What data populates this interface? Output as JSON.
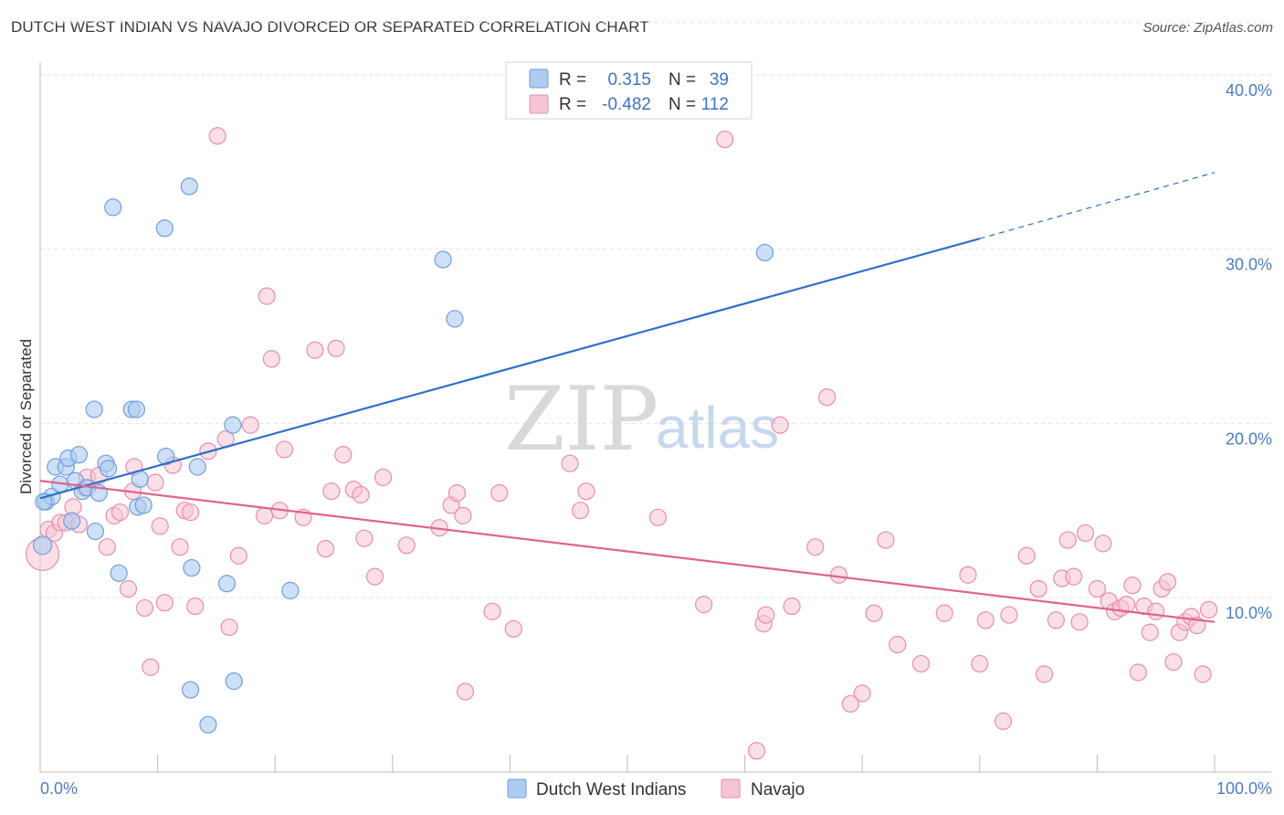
{
  "title": "DUTCH WEST INDIAN VS NAVAJO DIVORCED OR SEPARATED CORRELATION CHART",
  "source": "Source: ZipAtlas.com",
  "colors": {
    "blue_fill": "#aecbf2",
    "blue_stroke": "#6f9edb",
    "blue_line": "#2f6fc9",
    "pink_fill": "#f7c4d3",
    "pink_stroke": "#e88eab",
    "pink_line": "#e0648f",
    "grid": "#e2e2e2",
    "axis_text": "#4a7cc8"
  },
  "legend": {
    "rows": [
      {
        "r_label": "R =",
        "r_value": "0.315",
        "n_label": "N =",
        "n_value": "39"
      },
      {
        "r_label": "R =",
        "r_value": "-0.482",
        "n_label": "N =",
        "n_value": "112"
      }
    ]
  },
  "watermark": {
    "zip": "ZIP",
    "atlas": "atlas"
  },
  "chart_data": {
    "type": "scatter",
    "title": "DUTCH WEST INDIAN VS NAVAJO DIVORCED OR SEPARATED CORRELATION CHART",
    "xlabel": "",
    "ylabel": "Divorced or Separated",
    "xlim": [
      0,
      100
    ],
    "ylim": [
      0,
      43
    ],
    "x_tick_labels": [
      "0.0%",
      "100.0%"
    ],
    "y_ticks": [
      10,
      20,
      30,
      40
    ],
    "y_tick_labels": [
      "10.0%",
      "20.0%",
      "30.0%",
      "40.0%"
    ],
    "grid": true,
    "legend_position": "top-center",
    "series": [
      {
        "name": "Dutch West Indians",
        "color": "#aecbf2",
        "r": 0.315,
        "n": 39,
        "trend": {
          "x": [
            0,
            80
          ],
          "y": [
            15.7,
            30.6
          ],
          "dashed_to": [
            100,
            34.4
          ]
        },
        "points": [
          [
            0.2,
            13.0
          ],
          [
            0.5,
            15.5
          ],
          [
            1.0,
            15.8
          ],
          [
            1.3,
            17.5
          ],
          [
            1.7,
            16.5
          ],
          [
            2.2,
            17.5
          ],
          [
            2.4,
            18.0
          ],
          [
            2.7,
            14.4
          ],
          [
            3.0,
            16.7
          ],
          [
            3.3,
            18.2
          ],
          [
            3.6,
            16.1
          ],
          [
            4.0,
            16.3
          ],
          [
            4.6,
            20.8
          ],
          [
            5.0,
            16.0
          ],
          [
            4.7,
            13.8
          ],
          [
            5.6,
            17.7
          ],
          [
            5.8,
            17.4
          ],
          [
            6.2,
            32.4
          ],
          [
            6.7,
            11.4
          ],
          [
            7.8,
            20.8
          ],
          [
            8.3,
            15.2
          ],
          [
            8.2,
            20.8
          ],
          [
            8.5,
            16.8
          ],
          [
            8.8,
            15.3
          ],
          [
            10.6,
            31.2
          ],
          [
            10.7,
            18.1
          ],
          [
            12.7,
            33.6
          ],
          [
            12.8,
            4.7
          ],
          [
            12.9,
            11.7
          ],
          [
            13.4,
            17.5
          ],
          [
            14.3,
            2.7
          ],
          [
            15.9,
            10.8
          ],
          [
            16.4,
            19.9
          ],
          [
            16.5,
            5.2
          ],
          [
            21.3,
            10.4
          ],
          [
            34.3,
            29.4
          ],
          [
            35.3,
            26.0
          ],
          [
            61.7,
            29.8
          ],
          [
            0.3,
            15.5
          ]
        ]
      },
      {
        "name": "Navajo",
        "color": "#f7c4d3",
        "r": -0.482,
        "n": 112,
        "trend": {
          "x": [
            0,
            100
          ],
          "y": [
            16.7,
            8.6
          ]
        },
        "points": [
          [
            0.2,
            12.5
          ],
          [
            0.7,
            13.9
          ],
          [
            1.2,
            13.7
          ],
          [
            1.7,
            14.3
          ],
          [
            2.2,
            14.3
          ],
          [
            2.8,
            15.2
          ],
          [
            3.3,
            14.2
          ],
          [
            3.8,
            16.3
          ],
          [
            4.0,
            16.9
          ],
          [
            5.0,
            17.0
          ],
          [
            5.7,
            12.9
          ],
          [
            6.3,
            14.7
          ],
          [
            6.8,
            14.9
          ],
          [
            7.5,
            10.5
          ],
          [
            7.9,
            16.1
          ],
          [
            8.0,
            17.5
          ],
          [
            8.9,
            9.4
          ],
          [
            9.4,
            6.0
          ],
          [
            9.8,
            16.6
          ],
          [
            10.2,
            14.1
          ],
          [
            10.6,
            9.7
          ],
          [
            11.3,
            17.6
          ],
          [
            11.9,
            12.9
          ],
          [
            12.3,
            15.0
          ],
          [
            12.8,
            14.9
          ],
          [
            13.2,
            9.5
          ],
          [
            14.3,
            18.4
          ],
          [
            15.1,
            36.5
          ],
          [
            15.8,
            19.1
          ],
          [
            16.1,
            8.3
          ],
          [
            16.9,
            12.4
          ],
          [
            17.9,
            19.9
          ],
          [
            19.1,
            14.7
          ],
          [
            19.3,
            27.3
          ],
          [
            19.7,
            23.7
          ],
          [
            20.4,
            15.0
          ],
          [
            20.8,
            18.5
          ],
          [
            22.4,
            14.6
          ],
          [
            23.4,
            24.2
          ],
          [
            24.3,
            12.8
          ],
          [
            24.8,
            16.1
          ],
          [
            25.2,
            24.3
          ],
          [
            25.8,
            18.2
          ],
          [
            26.7,
            16.2
          ],
          [
            27.3,
            15.9
          ],
          [
            27.6,
            13.4
          ],
          [
            28.5,
            11.2
          ],
          [
            29.2,
            16.9
          ],
          [
            31.2,
            13.0
          ],
          [
            34.0,
            14.0
          ],
          [
            35.0,
            15.3
          ],
          [
            35.5,
            16.0
          ],
          [
            36.0,
            14.7
          ],
          [
            36.2,
            4.6
          ],
          [
            38.5,
            9.2
          ],
          [
            39.1,
            16.0
          ],
          [
            40.3,
            8.2
          ],
          [
            45.1,
            17.7
          ],
          [
            46.0,
            15.0
          ],
          [
            46.5,
            16.1
          ],
          [
            52.6,
            14.6
          ],
          [
            56.5,
            9.6
          ],
          [
            58.3,
            36.3
          ],
          [
            61.0,
            1.2
          ],
          [
            61.6,
            8.5
          ],
          [
            61.8,
            9.0
          ],
          [
            63.0,
            19.9
          ],
          [
            64.0,
            9.5
          ],
          [
            66.0,
            12.9
          ],
          [
            67.0,
            21.5
          ],
          [
            68.0,
            11.3
          ],
          [
            69.0,
            3.9
          ],
          [
            70.0,
            4.5
          ],
          [
            71.0,
            9.1
          ],
          [
            72.0,
            13.3
          ],
          [
            73.0,
            7.3
          ],
          [
            75.0,
            6.2
          ],
          [
            77.0,
            9.1
          ],
          [
            79.0,
            11.3
          ],
          [
            80.0,
            6.2
          ],
          [
            80.5,
            8.7
          ],
          [
            82.0,
            2.9
          ],
          [
            82.5,
            9.0
          ],
          [
            84.0,
            12.4
          ],
          [
            85.0,
            10.5
          ],
          [
            85.5,
            5.6
          ],
          [
            86.5,
            8.7
          ],
          [
            87.0,
            11.1
          ],
          [
            87.5,
            13.3
          ],
          [
            88.0,
            11.2
          ],
          [
            88.5,
            8.6
          ],
          [
            89.0,
            13.7
          ],
          [
            90.0,
            10.5
          ],
          [
            90.5,
            13.1
          ],
          [
            91.0,
            9.8
          ],
          [
            91.5,
            9.2
          ],
          [
            92.0,
            9.4
          ],
          [
            92.5,
            9.6
          ],
          [
            93.0,
            10.7
          ],
          [
            93.5,
            5.7
          ],
          [
            94.0,
            9.5
          ],
          [
            94.5,
            8.0
          ],
          [
            95.0,
            9.2
          ],
          [
            95.5,
            10.5
          ],
          [
            96.0,
            10.9
          ],
          [
            96.5,
            6.3
          ],
          [
            97.0,
            8.0
          ],
          [
            97.5,
            8.6
          ],
          [
            98.0,
            8.9
          ],
          [
            98.5,
            8.4
          ],
          [
            99.0,
            5.6
          ],
          [
            99.5,
            9.3
          ]
        ]
      }
    ]
  }
}
